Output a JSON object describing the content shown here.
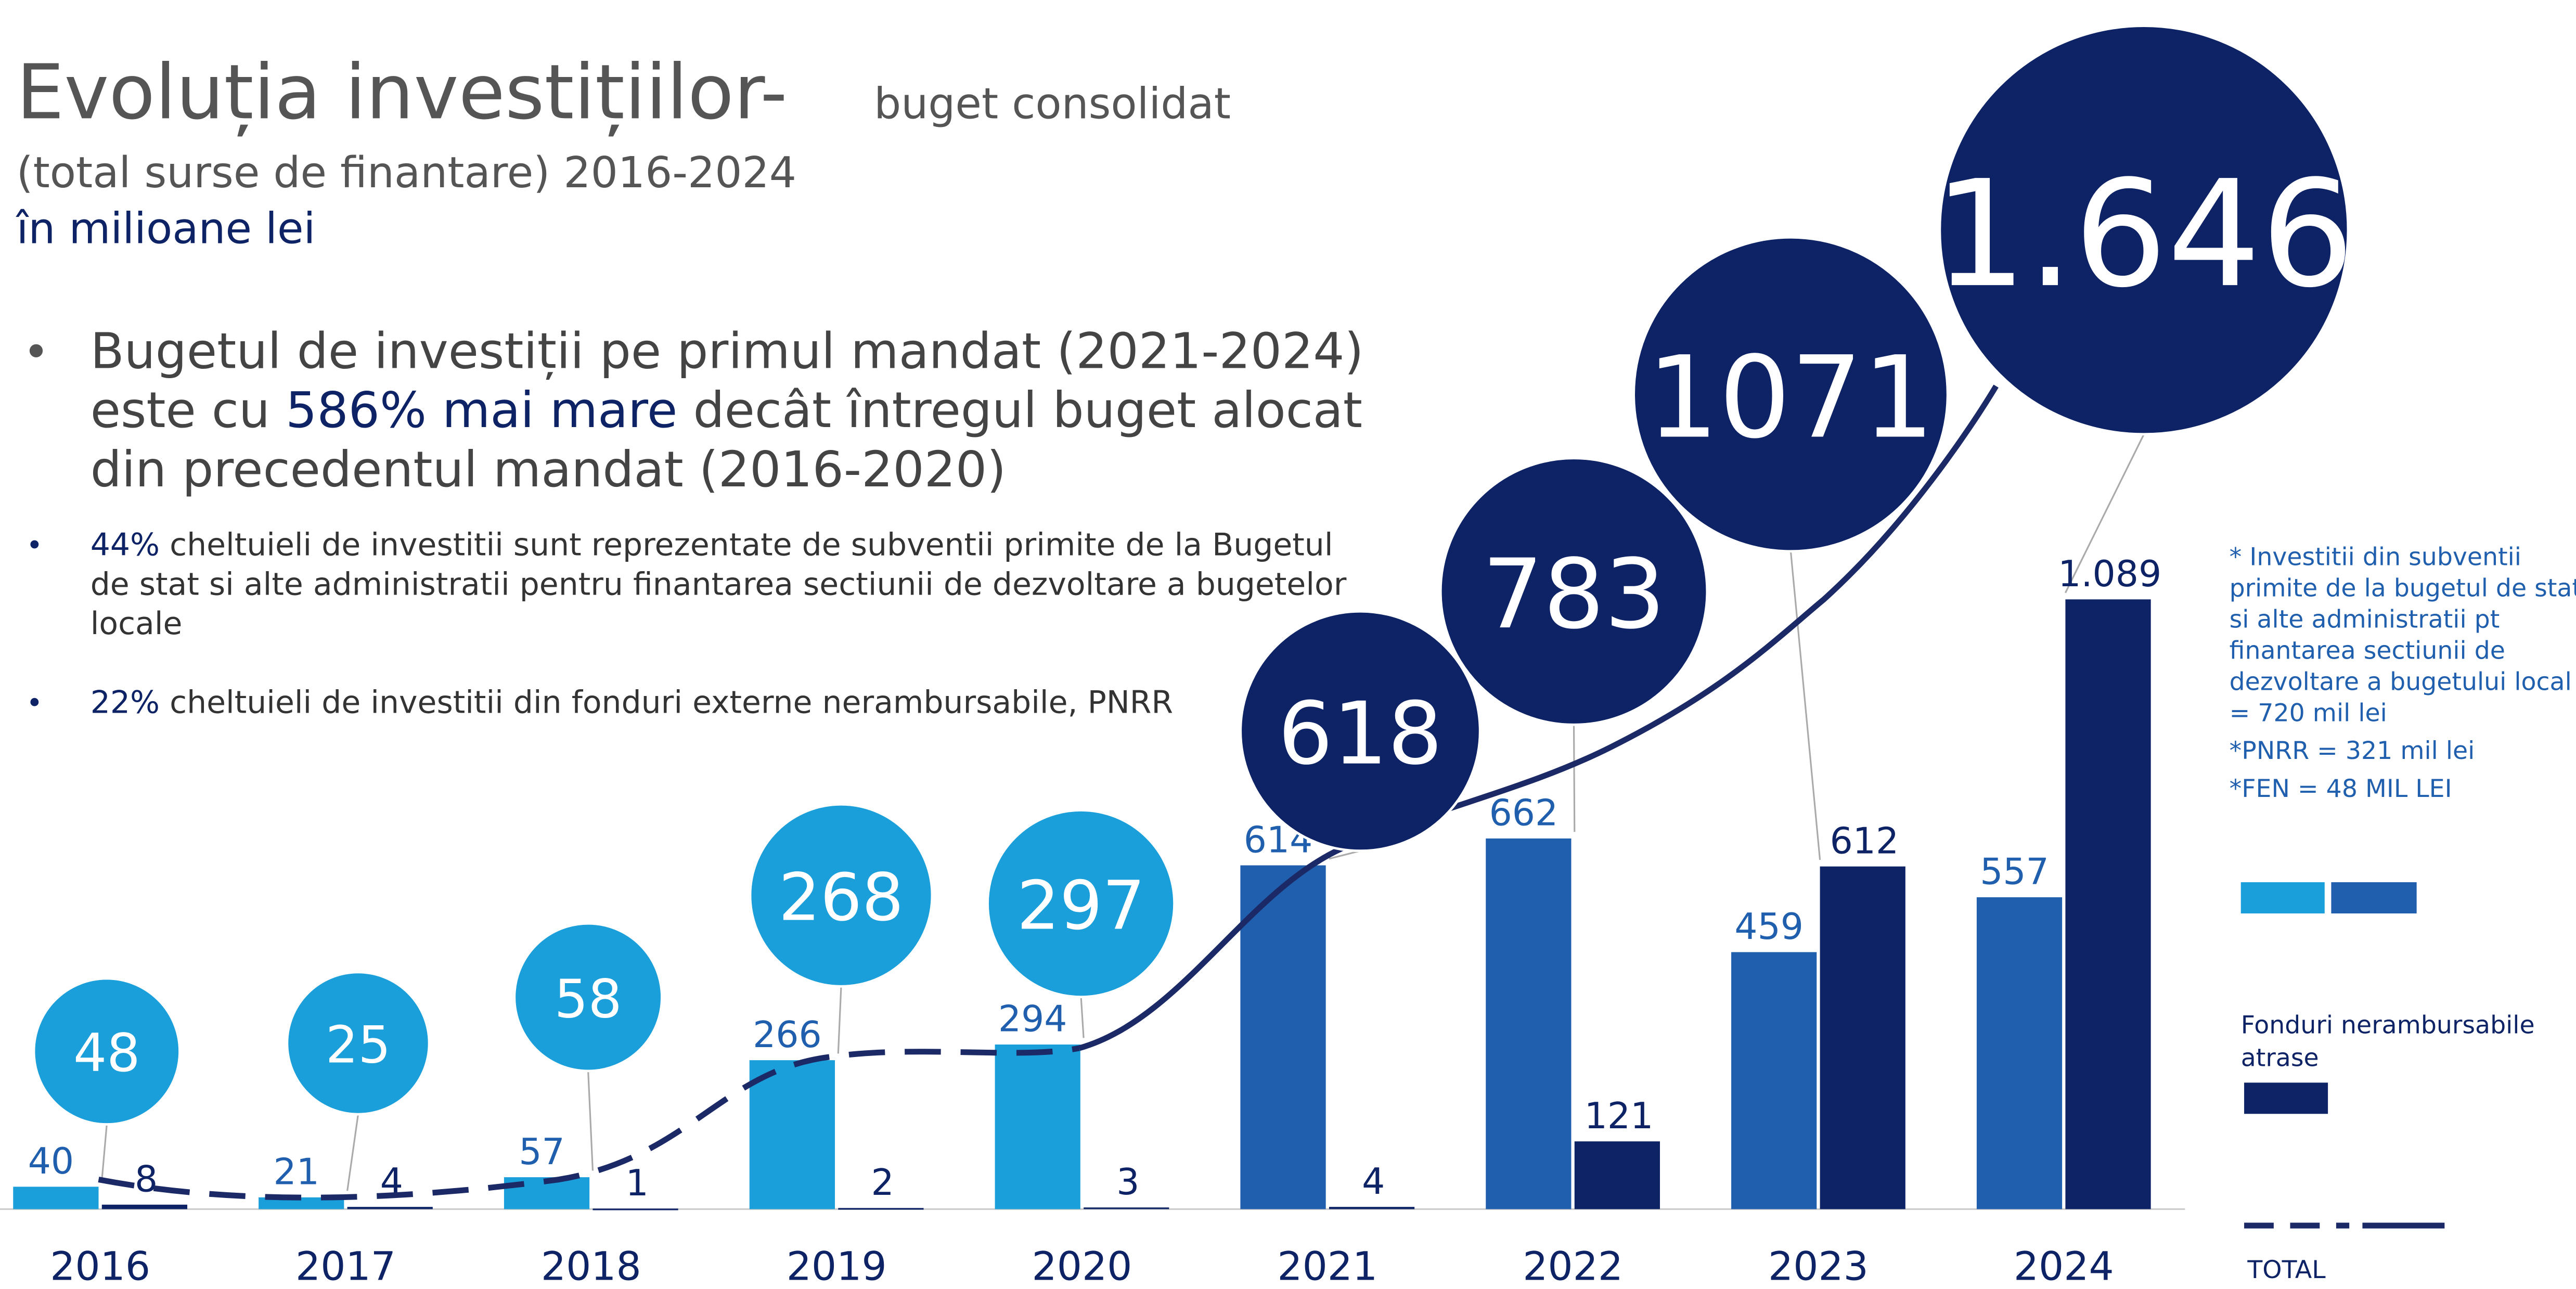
{
  "chart_data": {
    "type": "bar",
    "title": "Evoluția investițiilor-",
    "subtitle": "buget consolidat",
    "title_line2": "(total surse de finantare) 2016-2024",
    "unit_label": "în milioane lei",
    "bullets": [
      [
        [
          "Bugetul de investiții pe primul mandat (2021-2024)"
        ],
        [
          "este cu ",
          "586% mai mare",
          " decât întregul buget alocat"
        ],
        [
          "din precedentul mandat (2016-2020)"
        ]
      ],
      [
        [
          "",
          "44%",
          " cheltuieli de investitii  sunt reprezentate de subventii primite de la Bugetul"
        ],
        [
          "de stat si alte administratii pentru finantarea sectiunii de dezvoltare a bugetelor"
        ],
        [
          "locale"
        ]
      ],
      [
        [
          "",
          "22%",
          " cheltuieli de investitii din fonduri externe nerambursabile, PNRR"
        ]
      ]
    ],
    "categories": [
      "2016",
      "2017",
      "2018",
      "2019",
      "2020",
      "2021",
      "2022",
      "2023",
      "2024"
    ],
    "series": [
      {
        "colors": [
          "#1a9fdb",
          "#1a9fdb",
          "#1a9fdb",
          "#1a9fdb",
          "#1a9fdb",
          "#1f5fae",
          "#1f5fae",
          "#1f5fae",
          "#1f5fae"
        ],
        "values": [
          40,
          21,
          57,
          266,
          294,
          614,
          662,
          459,
          557
        ]
      },
      {
        "name": "Fonduri nerambursabile atrase",
        "color": "#0d2366",
        "values": [
          8,
          4,
          1,
          2,
          3,
          4,
          121,
          612,
          1089
        ],
        "value_labels": [
          "8",
          "4",
          "1",
          "2",
          "3",
          "4",
          "121",
          "612",
          "1.089"
        ]
      }
    ],
    "totals": {
      "name": "TOTAL",
      "values": [
        48,
        25,
        58,
        268,
        297,
        618,
        783,
        1071,
        1646
      ],
      "value_labels": [
        "48",
        "25",
        "58",
        "268",
        "297",
        "618",
        "783",
        "1071",
        "1.646"
      ],
      "colors": [
        "#1a9fdb",
        "#1a9fdb",
        "#1a9fdb",
        "#1a9fdb",
        "#1a9fdb",
        "#0d2366",
        "#0d2366",
        "#0d2366",
        "#0d2366"
      ]
    },
    "notes": [
      "* Investitii din subventii",
      "primite de la bugetul de stat",
      "si alte administratii pt",
      "finantarea sectiunii de",
      "dezvoltare a bugetului local",
      "= 720 mil lei",
      "*PNRR = 321 mil lei",
      "*FEN = 48 MIL LEI"
    ],
    "ylim": [
      0,
      1200
    ]
  }
}
